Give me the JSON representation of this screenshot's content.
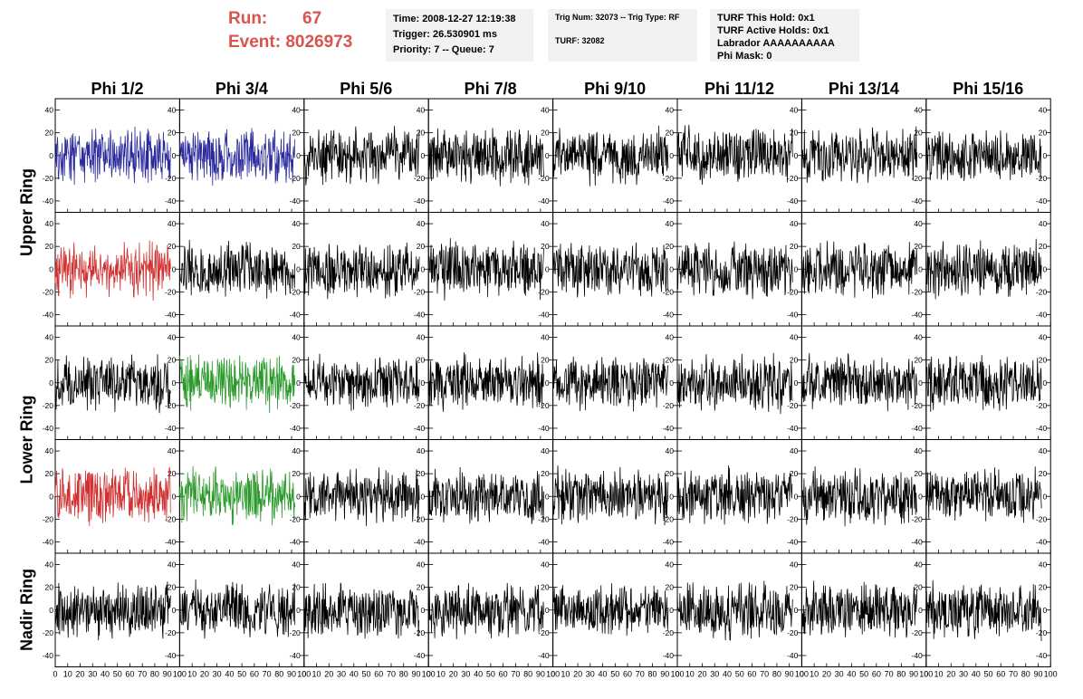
{
  "header": {
    "run_label": "Run:",
    "run_value": "67",
    "event_label": "Event:",
    "event_value": "8026973"
  },
  "info_panels": {
    "time": "Time: 2008-12-27 12:19:38",
    "trigger": "Trigger: 26.530901 ms",
    "priority": "Priority: 7 -- Queue: 7",
    "trig_num": "Trig Num: 32073 -- Trig Type: RF",
    "turf": "TURF: 32082",
    "turf_this_hold": "TURF This Hold: 0x1",
    "turf_active_holds": "TURF Active Holds: 0x1",
    "labrador": "Labrador AAAAAAAAAA",
    "phi_mask": "Phi Mask: 0"
  },
  "columns": [
    "Phi 1/2",
    "Phi 3/4",
    "Phi 5/6",
    "Phi 7/8",
    "Phi 9/10",
    "Phi 11/12",
    "Phi 13/14",
    "Phi 15/16"
  ],
  "ring_labels": [
    {
      "label": "Upper Ring"
    },
    {
      "label": "Lower Ring"
    },
    {
      "label": "Nadir Ring"
    }
  ],
  "colors": {
    "default_trace": "#000000",
    "blue_trace": "#2b2b9e",
    "red_trace": "#d03030",
    "green_trace": "#2a9a2a",
    "run_text": "#d9534f",
    "info_bg": "#f2f2f2"
  },
  "chart_data": {
    "type": "line",
    "rows": 5,
    "cols": 8,
    "xlim": [
      0,
      100
    ],
    "ylim": [
      -50,
      50
    ],
    "x_ticks": [
      0,
      10,
      20,
      30,
      40,
      50,
      60,
      70,
      80,
      90,
      100
    ],
    "y_ticks": [
      -40,
      -20,
      0,
      20,
      40
    ],
    "samples_per_trace": 260,
    "trace_amplitude": 20,
    "highlighted": [
      {
        "row": 0,
        "col": 0,
        "color": "blue_trace"
      },
      {
        "row": 0,
        "col": 1,
        "color": "blue_trace"
      },
      {
        "row": 1,
        "col": 0,
        "color": "red_trace"
      },
      {
        "row": 2,
        "col": 1,
        "color": "green_trace"
      },
      {
        "row": 3,
        "col": 0,
        "color": "red_trace"
      },
      {
        "row": 3,
        "col": 1,
        "color": "green_trace"
      }
    ]
  }
}
